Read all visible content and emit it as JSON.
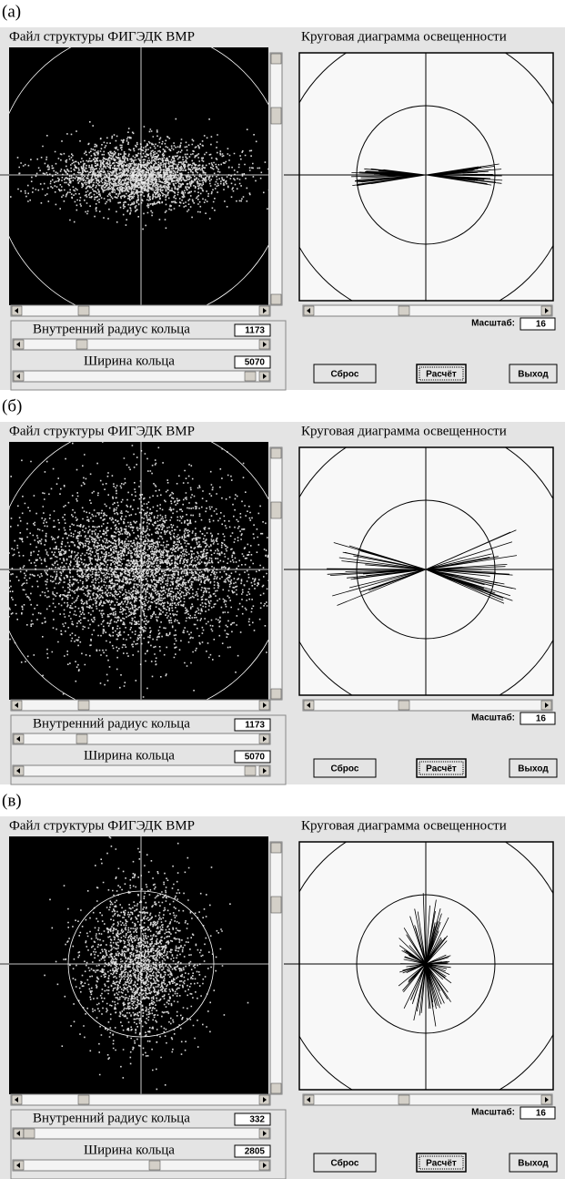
{
  "panels": [
    {
      "label": "(а)",
      "file_title": "Файл структуры ФИГЭДК ВМР",
      "diagram_title": "Круговая диаграмма освещенности",
      "inner_radius_label": "Внутренний радиус кольца",
      "inner_radius_value": 1173,
      "ring_width_label": "Ширина кольца",
      "ring_width_value": 5070,
      "scale_label": "Масштаб:",
      "scale_value": 16,
      "buttons": [
        "Сброс",
        "Расчёт",
        "Выход"
      ]
    },
    {
      "label": "(б)",
      "file_title": "Файл структуры ФИГЭДК ВМР",
      "diagram_title": "Круговая диаграмма освещенности",
      "inner_radius_label": "Внутренний радиус кольца",
      "inner_radius_value": 1173,
      "ring_width_label": "Ширина кольца",
      "ring_width_value": 5070,
      "scale_label": "Масштаб:",
      "scale_value": 16,
      "buttons": [
        "Сброс",
        "Расчёт",
        "Выход"
      ]
    },
    {
      "label": "(в)",
      "file_title": "Файл структуры ФИГЭДК ВМР",
      "diagram_title": "Круговая диаграмма освещенности",
      "inner_radius_label": "Внутренний радиус кольца",
      "inner_radius_value": 332,
      "ring_width_label": "Ширина кольца",
      "ring_width_value": 2805,
      "scale_label": "Масштаб:",
      "scale_value": 16,
      "buttons": [
        "Сброс",
        "Расчёт",
        "Выход"
      ]
    }
  ]
}
